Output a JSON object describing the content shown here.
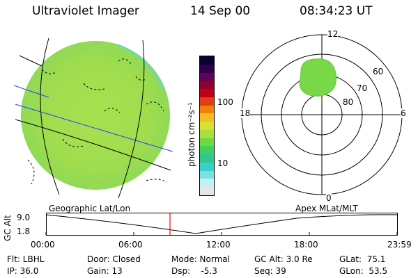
{
  "header": {
    "instrument": "Ultraviolet Imager",
    "date": "14 Sep 00",
    "time": "08:34:23 UT"
  },
  "colorbar": {
    "label": "photon cm⁻²s⁻¹",
    "ticks": [
      "100",
      "10"
    ],
    "colors": [
      "#e6e6e6",
      "#c8eef0",
      "#78e0e8",
      "#38d0c8",
      "#30c890",
      "#40d060",
      "#70d840",
      "#a8e040",
      "#d8e030",
      "#f0c020",
      "#f08010",
      "#e04010",
      "#c00018",
      "#900030",
      "#600060",
      "#300050",
      "#100030"
    ]
  },
  "polar_plot": {
    "labels": {
      "top": "12",
      "bottom": "0",
      "left": "18",
      "right": "6"
    },
    "ring_labels": [
      "60",
      "70",
      "80"
    ],
    "blob_color": "#78d848"
  },
  "timeline": {
    "left_title": "Geographic Lat/Lon",
    "right_title": "Apex  MLat/MLT",
    "axis_label": "GC Alt",
    "y_ticks": [
      "9.0",
      "1.8"
    ],
    "x_ticks": [
      "00:00",
      "06:00",
      "12:00",
      "18:00",
      "23:59"
    ],
    "marker_color": "#ff0000"
  },
  "info": {
    "row1": {
      "flt": "Flt: LBHL",
      "door": "Door: Closed",
      "mode": "Mode: Normal",
      "gcalt": "GC Alt: 3.0 Re",
      "glat": "GLat:  75.1"
    },
    "row2": {
      "ip": "IP: 36.0",
      "gain": "Gain: 13",
      "dsp": "Dsp:    -5.3",
      "seq": "Seq: 39",
      "glon": "GLon:  53.5"
    }
  }
}
